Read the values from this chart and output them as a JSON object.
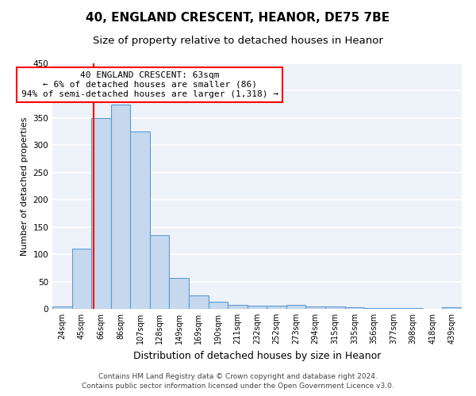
{
  "title1": "40, ENGLAND CRESCENT, HEANOR, DE75 7BE",
  "title2": "Size of property relative to detached houses in Heanor",
  "xlabel": "Distribution of detached houses by size in Heanor",
  "ylabel": "Number of detached properties",
  "categories": [
    "24sqm",
    "45sqm",
    "66sqm",
    "86sqm",
    "107sqm",
    "128sqm",
    "149sqm",
    "169sqm",
    "190sqm",
    "211sqm",
    "232sqm",
    "252sqm",
    "273sqm",
    "294sqm",
    "315sqm",
    "335sqm",
    "356sqm",
    "377sqm",
    "398sqm",
    "418sqm",
    "439sqm"
  ],
  "values": [
    5,
    110,
    350,
    375,
    325,
    135,
    57,
    25,
    13,
    7,
    6,
    6,
    7,
    5,
    5,
    3,
    2,
    2,
    2,
    0,
    3
  ],
  "bar_color": "#c5d8ed",
  "bar_edge_color": "#5b9bd5",
  "red_line_x": 1.63,
  "annotation_text": "40 ENGLAND CRESCENT: 63sqm\n← 6% of detached houses are smaller (86)\n94% of semi-detached houses are larger (1,318) →",
  "annotation_box_color": "white",
  "annotation_box_edge": "red",
  "ylim": [
    0,
    450
  ],
  "footnote1": "Contains HM Land Registry data © Crown copyright and database right 2024.",
  "footnote2": "Contains public sector information licensed under the Open Government Licence v3.0.",
  "bg_color": "#eef2f9",
  "grid_color": "white",
  "title1_fontsize": 11,
  "title2_fontsize": 9.5,
  "xlabel_fontsize": 9,
  "ylabel_fontsize": 8,
  "tick_fontsize": 7,
  "footnote_fontsize": 6.5,
  "annotation_fontsize": 8
}
